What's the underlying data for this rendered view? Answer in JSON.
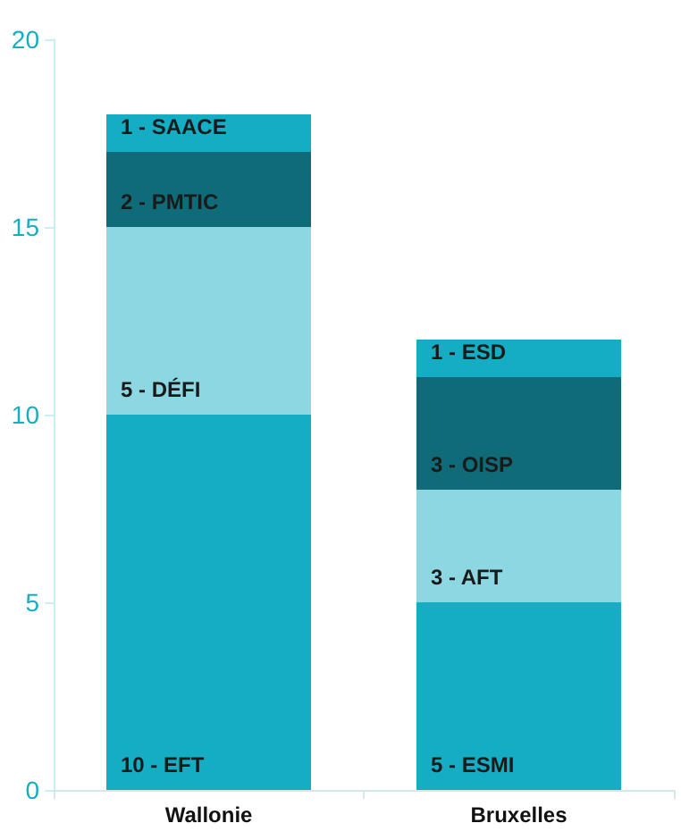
{
  "chart_data": {
    "type": "bar",
    "stacked": true,
    "categories": [
      "Wallonie",
      "Bruxelles"
    ],
    "series": [
      {
        "color": "#15adc4",
        "values": [
          10,
          5
        ],
        "value_labels": [
          "10 - EFT",
          "5 - ESMI"
        ]
      },
      {
        "color": "#8dd7e3",
        "values": [
          5,
          3
        ],
        "value_labels": [
          "5 - DÉFI",
          "3 - AFT"
        ]
      },
      {
        "color": "#0f6b78",
        "values": [
          2,
          3
        ],
        "value_labels": [
          "2 - PMTIC",
          "3 - OISP"
        ]
      },
      {
        "color": "#15adc4",
        "values": [
          1,
          1
        ],
        "value_labels": [
          "1 - SAACE",
          "1 - ESD"
        ]
      }
    ],
    "ylim": [
      0,
      20
    ],
    "yticks": [
      0,
      5,
      10,
      15,
      20
    ]
  }
}
